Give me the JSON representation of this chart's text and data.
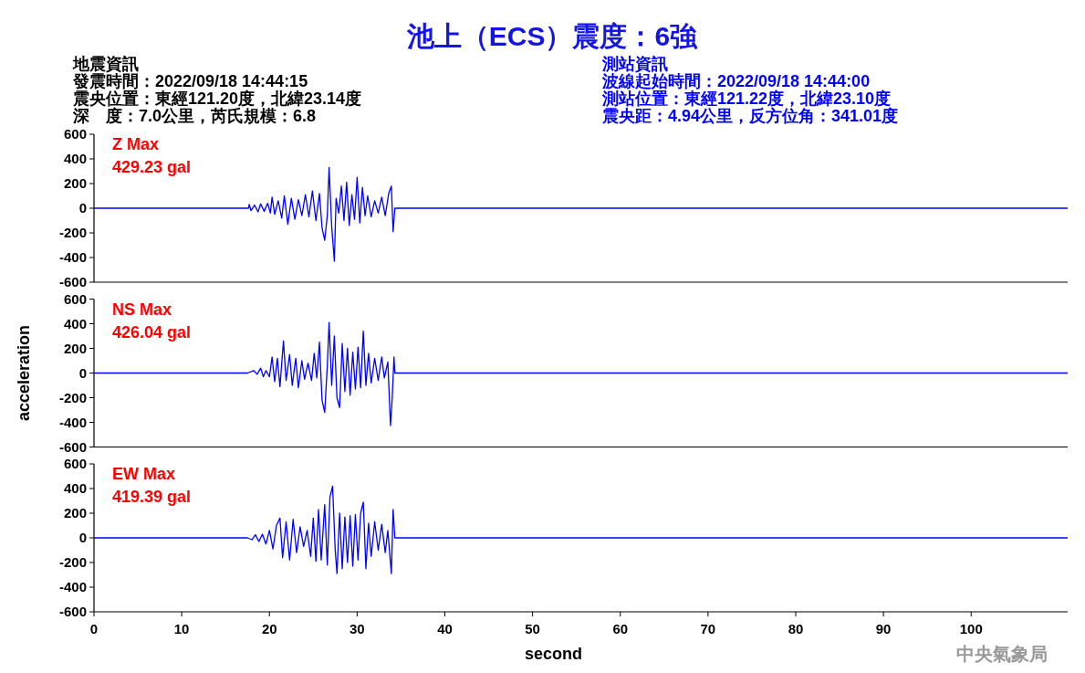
{
  "chart_data": [
    {
      "type": "line",
      "title": "池上（ECS）震度：6強",
      "xlim": [
        0,
        111
      ],
      "ylim": [
        -600,
        600
      ],
      "yticks": [
        -600,
        -400,
        -200,
        0,
        200,
        400,
        600
      ],
      "tick_labels": "y",
      "annotations": [
        "Z Max",
        "429.23 gal",
        "地震資訊",
        "發震時間：2022/09/18 14:44:15",
        "震央位置：東經121.20度，北緯23.14度",
        "深　度：7.0公里，芮氏規模：6.8",
        "測站資訊",
        "波線起始時間：2022/09/18 14:44:00",
        "測站位置：東經121.22度，北緯23.10度",
        "震央距：4.94公里，反方位角：341.01度"
      ],
      "series": [
        {
          "color": "#0000ff",
          "x": [
            0,
            17.6,
            17.7,
            17.9,
            18.3,
            18.7,
            19.0,
            19.4,
            19.8,
            20.1,
            20.3,
            20.6,
            21.0,
            21.4,
            21.7,
            22.1,
            22.5,
            22.9,
            23.3,
            23.7,
            24.1,
            24.5,
            24.9,
            25.3,
            25.7,
            26.0,
            26.3,
            26.6,
            26.8,
            27.1,
            27.4,
            27.6,
            27.9,
            28.2,
            28.5,
            28.8,
            29.1,
            29.4,
            29.7,
            30.0,
            30.3,
            30.6,
            30.9,
            31.2,
            31.6,
            32.0,
            32.4,
            32.8,
            33.2,
            33.6,
            33.9,
            34.1,
            34.3,
            111
          ],
          "values": [
            0,
            0,
            30,
            -20,
            25,
            -30,
            35,
            -25,
            40,
            -40,
            90,
            -50,
            60,
            -80,
            100,
            -130,
            80,
            -90,
            70,
            -60,
            110,
            -70,
            140,
            -100,
            120,
            -160,
            -260,
            -60,
            330,
            -150,
            -430,
            80,
            -40,
            180,
            -100,
            210,
            -140,
            110,
            -90,
            250,
            -120,
            170,
            -60,
            100,
            -70,
            60,
            -40,
            90,
            -60,
            120,
            180,
            -190,
            0,
            0
          ]
        }
      ]
    },
    {
      "type": "line",
      "ylabel": "acceleration",
      "xlim": [
        0,
        111
      ],
      "ylim": [
        -600,
        600
      ],
      "yticks": [
        -600,
        -400,
        -200,
        0,
        200,
        400,
        600
      ],
      "tick_labels": "y",
      "annotations": [
        "NS Max",
        "426.04 gal"
      ],
      "series": [
        {
          "color": "#0000ff",
          "x": [
            0,
            17.5,
            18.2,
            18.6,
            19.0,
            19.3,
            19.6,
            20.0,
            20.3,
            20.6,
            20.9,
            21.2,
            21.6,
            21.9,
            22.3,
            22.6,
            23.0,
            23.3,
            23.7,
            24.0,
            24.4,
            24.8,
            25.1,
            25.4,
            25.7,
            26.0,
            26.3,
            26.6,
            26.8,
            27.1,
            27.4,
            27.7,
            28.0,
            28.3,
            28.6,
            28.9,
            29.2,
            29.5,
            29.8,
            30.1,
            30.4,
            30.7,
            31.0,
            31.3,
            31.6,
            32.0,
            32.4,
            32.8,
            33.1,
            33.5,
            33.8,
            34.0,
            34.2,
            34.3,
            111
          ],
          "values": [
            0,
            0,
            20,
            -10,
            40,
            -30,
            20,
            -30,
            130,
            -70,
            120,
            -110,
            260,
            -60,
            150,
            -100,
            120,
            -120,
            100,
            -50,
            80,
            -60,
            160,
            -40,
            250,
            -220,
            -320,
            60,
            410,
            -100,
            300,
            -200,
            -280,
            240,
            -150,
            200,
            -180,
            170,
            -130,
            210,
            -120,
            340,
            -100,
            160,
            -80,
            120,
            -60,
            130,
            -40,
            90,
            -426,
            -200,
            130,
            0,
            0
          ]
        }
      ]
    },
    {
      "type": "line",
      "xlabel": "second",
      "xlim": [
        0,
        111
      ],
      "ylim": [
        -600,
        600
      ],
      "yticks": [
        -600,
        -400,
        -200,
        0,
        200,
        400,
        600
      ],
      "xticks": [
        0,
        10,
        20,
        30,
        40,
        50,
        60,
        70,
        80,
        90,
        100
      ],
      "annotations": [
        "EW Max",
        "419.39 gal",
        "中央氣象局"
      ],
      "series": [
        {
          "color": "#0000ff",
          "x": [
            0,
            17.5,
            18.0,
            18.4,
            18.8,
            19.2,
            19.6,
            20.0,
            20.4,
            20.8,
            21.2,
            21.5,
            21.9,
            22.3,
            22.7,
            23.1,
            23.5,
            23.9,
            24.3,
            24.7,
            25.0,
            25.3,
            25.6,
            25.9,
            26.3,
            26.6,
            26.9,
            27.2,
            27.5,
            27.7,
            28.0,
            28.3,
            28.6,
            28.9,
            29.2,
            29.5,
            29.8,
            30.1,
            30.4,
            30.7,
            31.0,
            31.3,
            31.6,
            32.0,
            32.4,
            32.8,
            33.2,
            33.5,
            33.9,
            34.1,
            34.3,
            111
          ],
          "values": [
            0,
            0,
            -15,
            25,
            -30,
            30,
            -50,
            60,
            -90,
            100,
            160,
            -160,
            130,
            -180,
            150,
            -120,
            90,
            -70,
            60,
            -150,
            160,
            -190,
            230,
            -180,
            270,
            -220,
            330,
            419,
            -100,
            -290,
            200,
            -250,
            170,
            -200,
            180,
            -230,
            190,
            -180,
            200,
            290,
            -250,
            120,
            -150,
            130,
            -100,
            110,
            -120,
            60,
            -290,
            230,
            0,
            0
          ]
        }
      ]
    }
  ]
}
